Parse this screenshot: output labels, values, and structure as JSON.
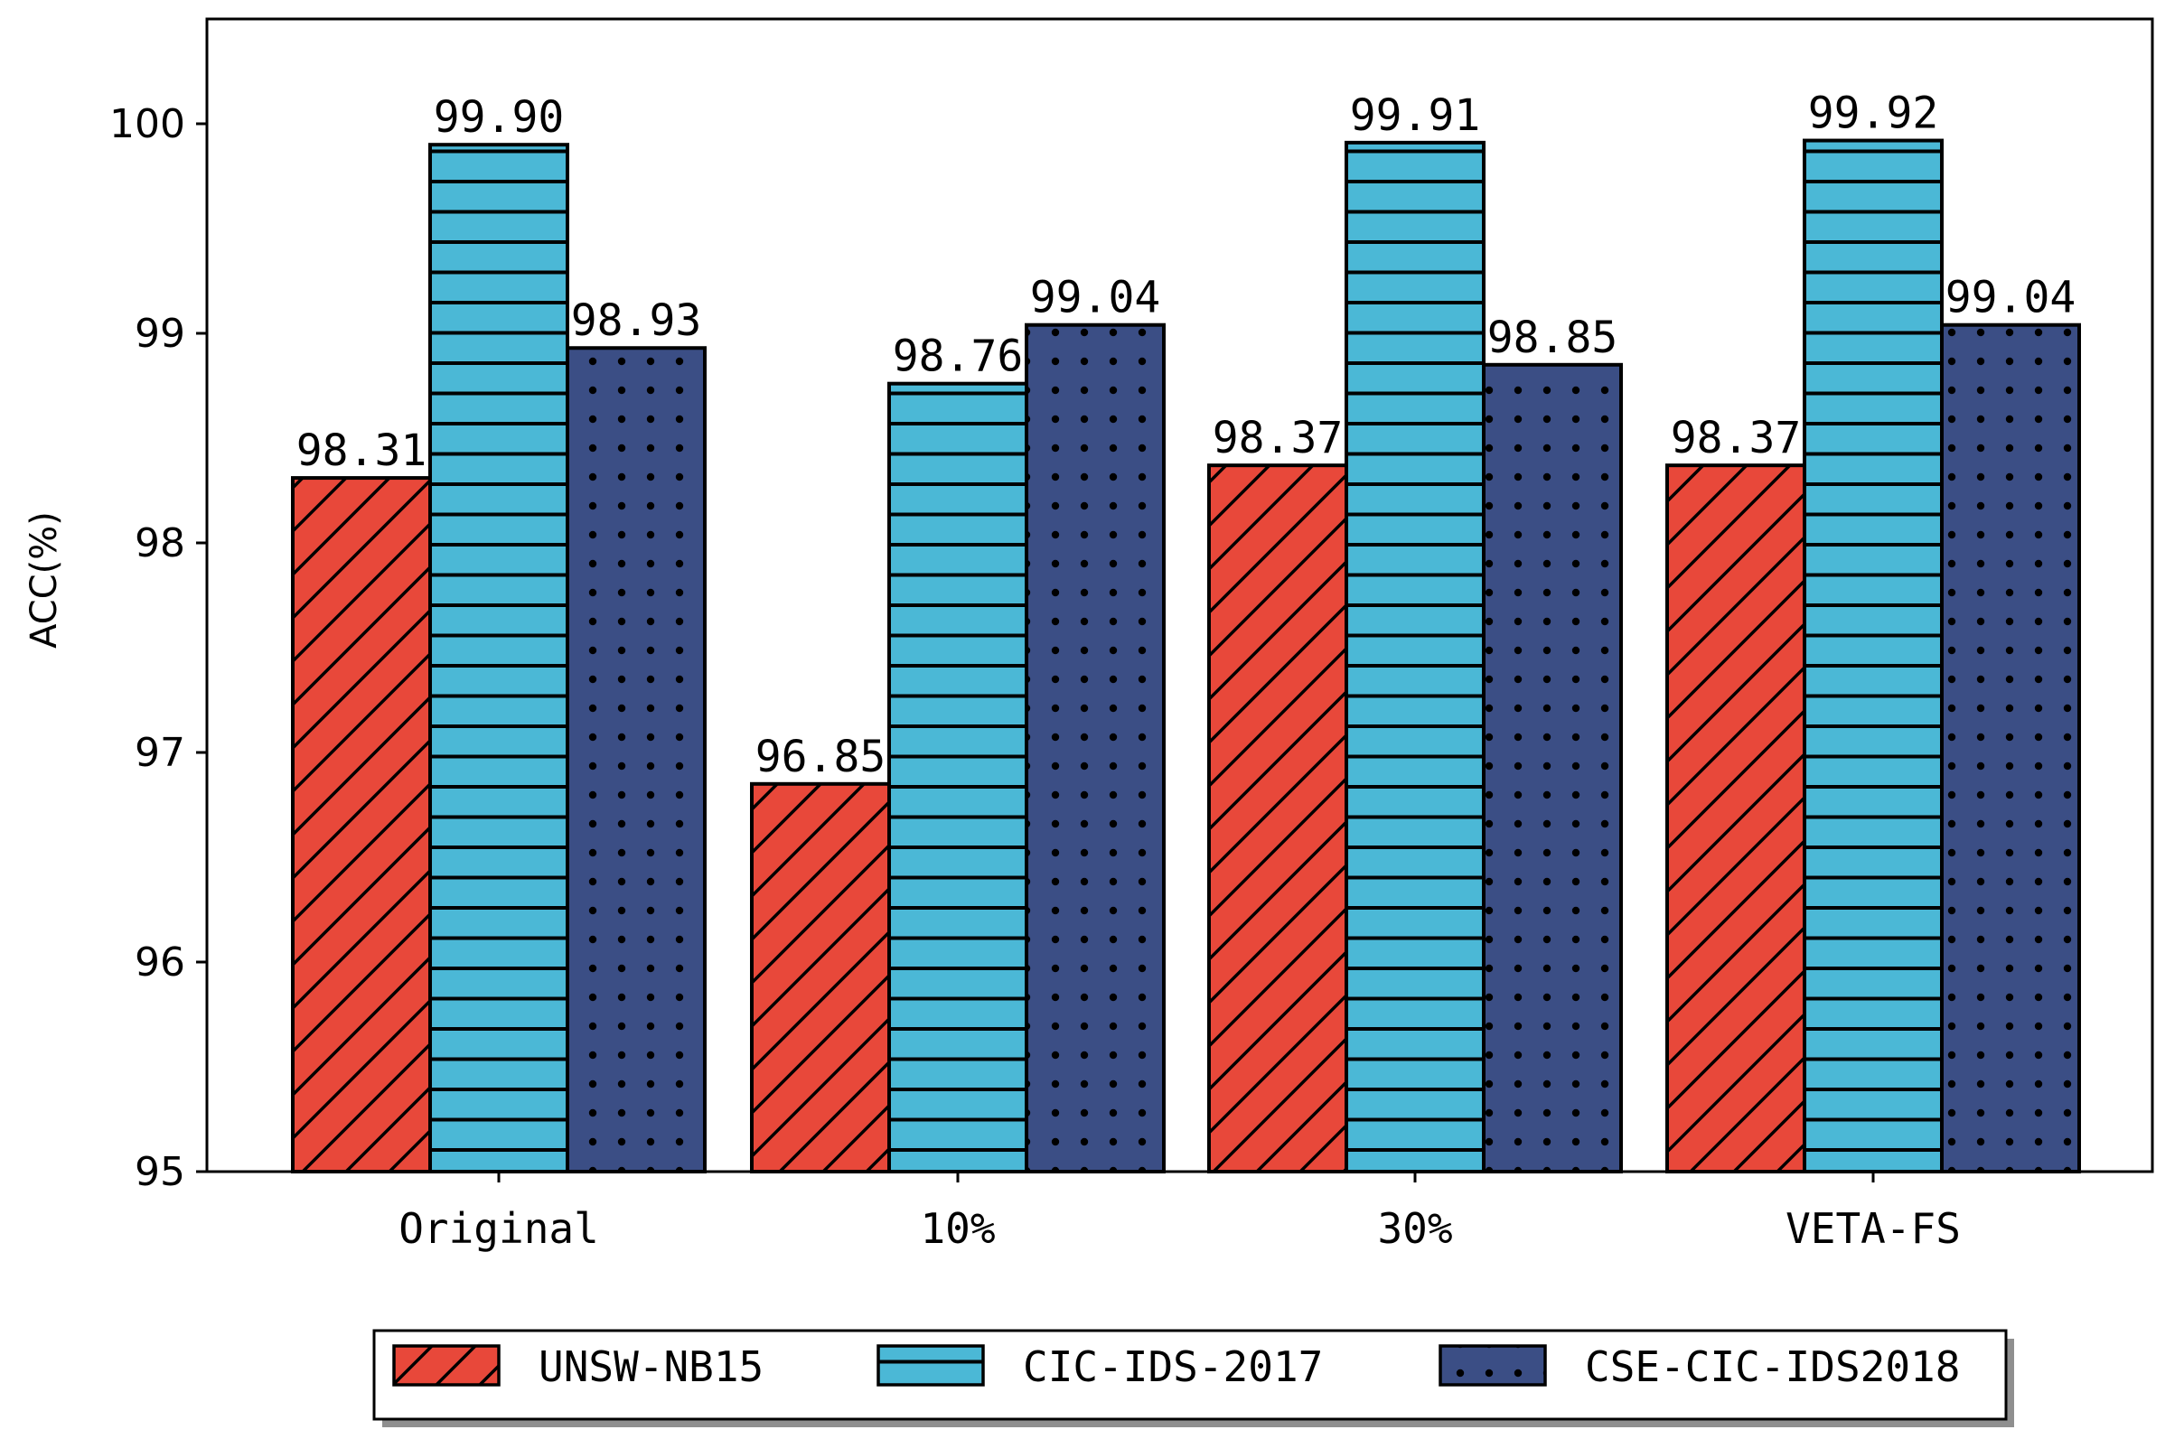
{
  "chart_data": {
    "type": "bar",
    "title": "",
    "xlabel": "",
    "ylabel": "ACC(%)",
    "ylim": [
      95,
      100.5
    ],
    "yticks": [
      "95",
      "96",
      "97",
      "98",
      "99",
      "100"
    ],
    "grid": false,
    "legend_position": "bottom-center",
    "categories": [
      "Original",
      "10%",
      "30%",
      "VETA-FS"
    ],
    "series": [
      {
        "name": "UNSW-NB15",
        "color": "#E8483A",
        "pattern": "diagonal-hatch",
        "values": [
          98.31,
          96.85,
          98.37,
          98.37
        ],
        "labels": [
          "98.31",
          "96.85",
          "98.37",
          "98.37"
        ]
      },
      {
        "name": "CIC-IDS-2017",
        "color": "#4BB8D6",
        "pattern": "horizontal-hatch",
        "values": [
          99.9,
          98.76,
          99.91,
          99.92
        ],
        "labels": [
          "99.90",
          "98.76",
          "99.91",
          "99.92"
        ]
      },
      {
        "name": "CSE-CIC-IDS2018",
        "color": "#3B4E85",
        "pattern": "dots",
        "values": [
          98.93,
          99.04,
          98.85,
          99.04
        ],
        "labels": [
          "98.93",
          "99.04",
          "98.85",
          "99.04"
        ]
      }
    ]
  }
}
